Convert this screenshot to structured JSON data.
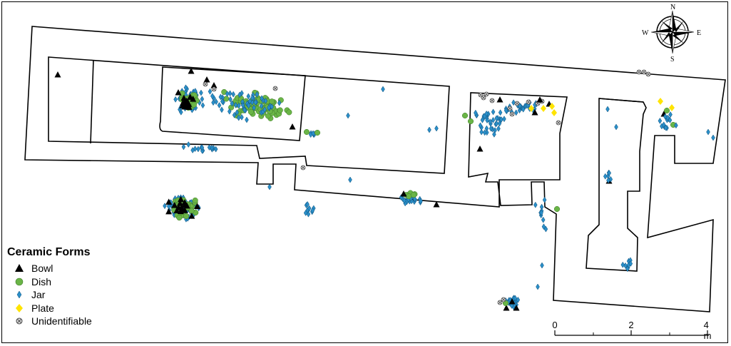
{
  "legend": {
    "title": "Ceramic Forms",
    "items": [
      {
        "label": "Bowl",
        "symbol": "triangle",
        "color": "#000000"
      },
      {
        "label": "Dish",
        "symbol": "circle",
        "color": "#6ab547"
      },
      {
        "label": "Jar",
        "symbol": "diamond",
        "color": "#2a8fc9"
      },
      {
        "label": "Plate",
        "symbol": "diamond",
        "color": "#ffe400"
      },
      {
        "label": "Unidentifiable",
        "symbol": "crossed-circle",
        "color": "#888888"
      }
    ]
  },
  "compass": {
    "n": "N",
    "s": "S",
    "e": "E",
    "w": "W"
  },
  "scale": {
    "labels": [
      "0",
      "2",
      "4 m"
    ]
  },
  "colors": {
    "bowl": "#000000",
    "dish": "#6ab547",
    "jar": "#2a8fc9",
    "plate": "#ffe400",
    "unidentifiable": "#888888",
    "wall": "#000000"
  }
}
